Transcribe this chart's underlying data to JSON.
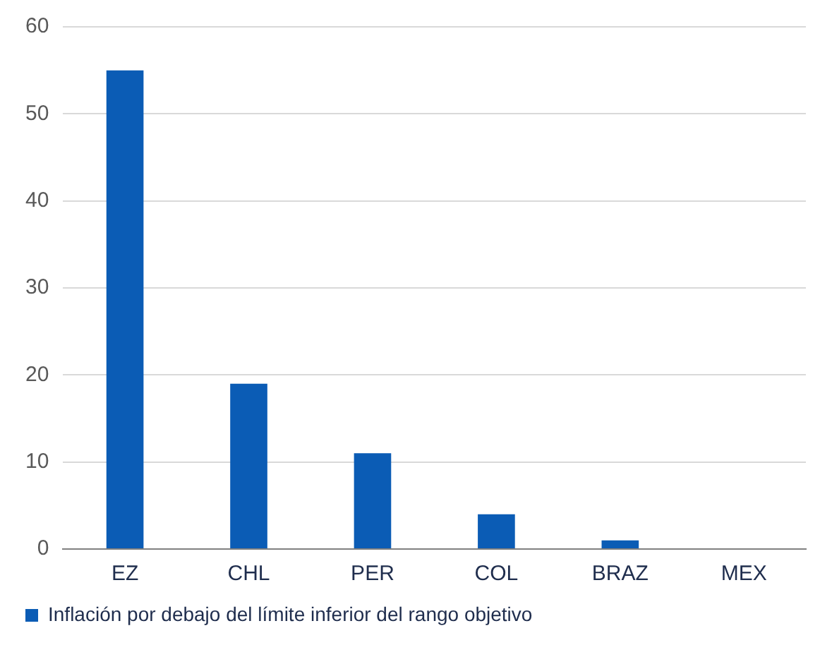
{
  "chart_data": {
    "type": "bar",
    "categories": [
      "EZ",
      "CHL",
      "PER",
      "COL",
      "BRAZ",
      "MEX"
    ],
    "series": [
      {
        "name": "Inflación por debajo del límite inferior del rango objetivo",
        "color": "#0b5cb5",
        "values": [
          55,
          19,
          11,
          4,
          1,
          0
        ]
      }
    ],
    "ylim": [
      0,
      60
    ],
    "yticks": [
      0,
      10,
      20,
      30,
      40,
      50,
      60
    ],
    "grid": "y",
    "legend": "bottom"
  }
}
